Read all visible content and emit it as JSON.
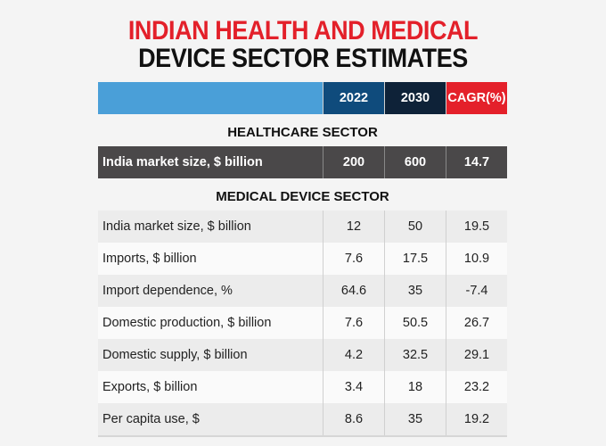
{
  "chart_data": {
    "type": "table",
    "title": [
      "INDIAN HEALTH AND MEDICAL",
      "DEVICE SECTOR ESTIMATES"
    ],
    "columns": [
      "",
      "2022",
      "2030",
      "CAGR(%)"
    ],
    "column_colors": [
      "#4a9fd8",
      "#0f4b7c",
      "#0e2238",
      "#e4202a"
    ],
    "sections": [
      {
        "title": "HEALTHCARE SECTOR",
        "rows": [
          [
            "India market size, $ billion",
            "200",
            "600",
            "14.7"
          ]
        ]
      },
      {
        "title": "MEDICAL DEVICE SECTOR",
        "rows": [
          [
            "India market size, $ billion",
            "12",
            "50",
            "19.5"
          ],
          [
            "Imports, $ billion",
            "7.6",
            "17.5",
            "10.9"
          ],
          [
            "Import dependence, %",
            "64.6",
            "35",
            "-7.4"
          ],
          [
            "Domestic production, $ billion",
            "7.6",
            "50.5",
            "26.7"
          ],
          [
            "Domestic supply, $ billion",
            "4.2",
            "32.5",
            "29.1"
          ],
          [
            "Exports, $ billion",
            "3.4",
            "18",
            "23.2"
          ],
          [
            "Per capita use, $",
            "8.6",
            "35",
            "19.2"
          ]
        ]
      }
    ]
  }
}
